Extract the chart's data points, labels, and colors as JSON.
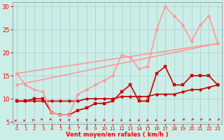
{
  "xlabel": "Vent moyen/en rafales ( km/h )",
  "background_color": "#cceee8",
  "grid_color": "#aacccc",
  "xlim": [
    -0.5,
    23.5
  ],
  "ylim": [
    4.5,
    31
  ],
  "yticks": [
    5,
    10,
    15,
    20,
    25,
    30
  ],
  "xticks": [
    0,
    1,
    2,
    3,
    4,
    5,
    6,
    7,
    8,
    9,
    10,
    11,
    12,
    13,
    14,
    15,
    16,
    17,
    18,
    19,
    20,
    21,
    22,
    23
  ],
  "series": [
    {
      "x": [
        0,
        1,
        2,
        3,
        4,
        5,
        6,
        7,
        8,
        9,
        10,
        11,
        12,
        13,
        14,
        15,
        16,
        17,
        18,
        19,
        20,
        21,
        22,
        23
      ],
      "y": [
        9.5,
        9.5,
        9.5,
        9.5,
        9.5,
        9.5,
        9.5,
        9.5,
        10,
        10,
        10,
        10,
        10.5,
        10.5,
        10.5,
        10.5,
        11,
        11,
        11,
        11.5,
        12,
        12,
        12.5,
        13
      ],
      "color": "#cc0000",
      "lw": 1.2,
      "marker": "D",
      "ms": 2.5
    },
    {
      "x": [
        0,
        1,
        2,
        3,
        4,
        5,
        6,
        7,
        8,
        9,
        10,
        11,
        12,
        13,
        14,
        15,
        16,
        17,
        18,
        19,
        20,
        21,
        22,
        23
      ],
      "y": [
        9.5,
        9.5,
        10,
        10,
        7,
        6.5,
        6.5,
        7.5,
        8,
        9,
        9,
        9.5,
        11.5,
        13,
        9.5,
        9.5,
        15.5,
        17,
        13,
        13,
        15,
        15,
        15,
        13
      ],
      "color": "#cc0000",
      "lw": 1.2,
      "marker": "s",
      "ms": 2.5
    },
    {
      "x": [
        0,
        23
      ],
      "y": [
        15.5,
        22
      ],
      "color": "#ff9999",
      "lw": 1.2,
      "marker": "D",
      "ms": 2.5
    },
    {
      "x": [
        0,
        23
      ],
      "y": [
        13,
        22
      ],
      "color": "#ff9999",
      "lw": 1.2,
      "marker": "D",
      "ms": 2.5
    },
    {
      "x": [
        0,
        1,
        2,
        3,
        4,
        5,
        6,
        7,
        8,
        9,
        10,
        11,
        12,
        13,
        14,
        15,
        16,
        17,
        18,
        19,
        20,
        21,
        22,
        23
      ],
      "y": [
        15.5,
        13,
        12,
        11.5,
        7,
        6.5,
        6.5,
        11,
        12,
        13,
        14,
        15,
        19.5,
        19,
        16.5,
        17,
        25,
        30,
        28,
        26,
        22.5,
        26,
        28,
        22
      ],
      "color": "#ff9999",
      "lw": 1.2,
      "marker": "D",
      "ms": 2.5
    }
  ],
  "arrow_color": "#cc0000",
  "arrow_angles": [
    45,
    50,
    90,
    135,
    135,
    180,
    180,
    180,
    180,
    200,
    200,
    210,
    205,
    210,
    215,
    220,
    220,
    215,
    220,
    225,
    225,
    225,
    230,
    230
  ]
}
